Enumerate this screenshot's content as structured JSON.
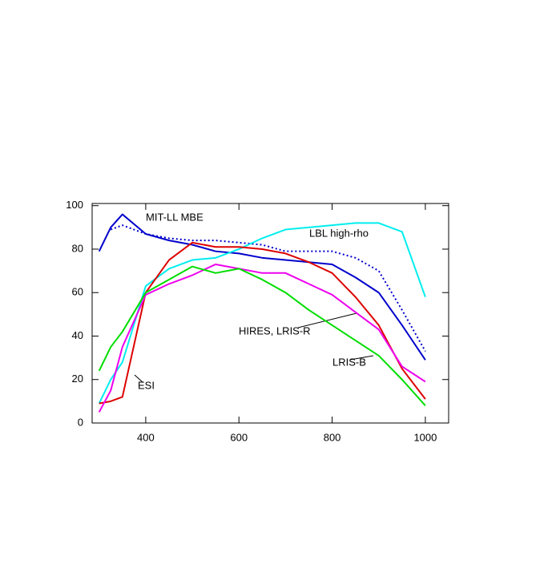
{
  "chart_data": {
    "type": "line",
    "x": [
      300,
      325,
      350,
      400,
      450,
      500,
      550,
      600,
      650,
      700,
      750,
      800,
      850,
      900,
      950,
      1000
    ],
    "xlim": [
      285,
      1050
    ],
    "xticks": [
      400,
      600,
      800,
      1000
    ],
    "ylim": [
      0,
      101
    ],
    "yticks": [
      0,
      20,
      40,
      60,
      80,
      100
    ],
    "series": [
      {
        "name": "MIT-LL MBE",
        "color": "#0000cc",
        "values": [
          79,
          90,
          96,
          87,
          84,
          82,
          79,
          78,
          76,
          75,
          74,
          73,
          67,
          60,
          45,
          29
        ]
      },
      {
        "color": "#0000cc",
        "dash": true,
        "values": [
          null,
          89,
          91,
          87,
          85,
          84,
          84,
          83,
          82,
          79,
          79,
          79,
          76,
          70,
          52,
          33
        ]
      },
      {
        "name": "LBL high-rho",
        "color": "#00eeee",
        "values": [
          9,
          20,
          28,
          63,
          71,
          75,
          76,
          80,
          85,
          89,
          90,
          91,
          92,
          92,
          88,
          58
        ]
      },
      {
        "name": "ESI",
        "color": "#dd0000",
        "values": [
          9,
          10,
          12,
          60,
          75,
          83,
          81,
          81,
          80,
          78,
          74,
          69,
          58,
          45,
          25,
          11
        ]
      },
      {
        "name": "HIRES, LRIS-R",
        "color": "#ee00ee",
        "values": [
          5,
          15,
          35,
          59,
          64,
          68,
          73,
          71,
          69,
          69,
          64,
          59,
          51,
          43,
          26,
          19
        ]
      },
      {
        "name": "LRIS-B",
        "color": "#00dd00",
        "values": [
          24,
          35,
          42,
          60,
          66,
          72,
          69,
          71,
          66,
          60,
          52,
          45,
          38,
          31,
          20,
          8
        ]
      }
    ]
  }
}
